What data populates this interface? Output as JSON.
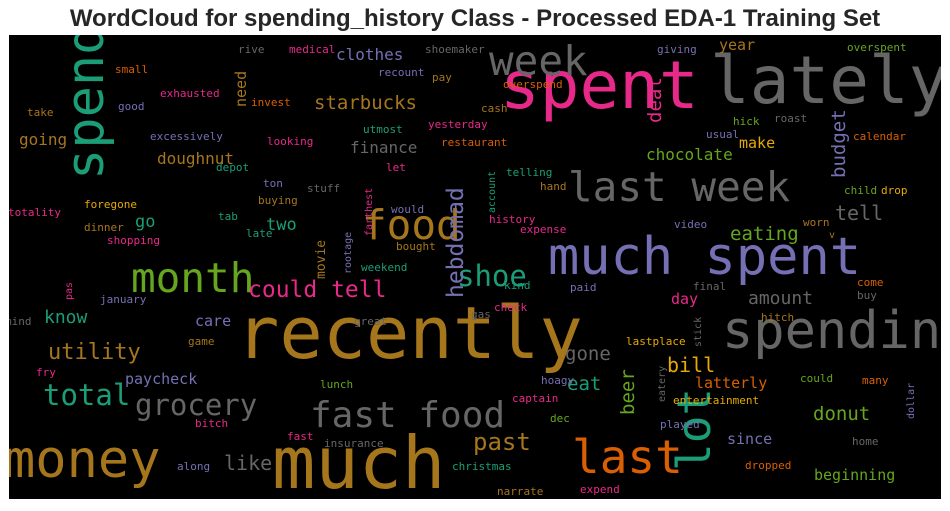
{
  "chart_data": {
    "type": "wordcloud",
    "title": "WordCloud for spending_history Class - Processed EDA-1 Training Set",
    "background": "#000000",
    "colors": {
      "pink": "#e7298a",
      "green": "#1b9e77",
      "gold": "#a6761d",
      "gray": "#666666",
      "purple": "#7570b3",
      "orange": "#d95f02",
      "lime": "#66a61e",
      "yellow": "#e6ab02"
    },
    "words": [
      {
        "text": "spent",
        "color": "pink",
        "weight": 0.92
      },
      {
        "text": "lately",
        "color": "gray",
        "weight": 0.82
      },
      {
        "text": "spend",
        "color": "green",
        "weight": 0.78
      },
      {
        "text": "week",
        "color": "gray",
        "weight": 0.52
      },
      {
        "text": "last week",
        "color": "gray",
        "weight": 0.52
      },
      {
        "text": "much spent",
        "color": "purple",
        "weight": 0.7
      },
      {
        "text": "recently",
        "color": "gold",
        "weight": 1.0
      },
      {
        "text": "spending",
        "color": "gray",
        "weight": 0.7
      },
      {
        "text": "much",
        "color": "gold",
        "weight": 1.0
      },
      {
        "text": "money",
        "color": "gold",
        "weight": 0.7
      },
      {
        "text": "last",
        "color": "orange",
        "weight": 0.58
      },
      {
        "text": "lot",
        "color": "green",
        "weight": 0.58
      },
      {
        "text": "food",
        "color": "gold",
        "weight": 0.52
      },
      {
        "text": "month",
        "color": "lime",
        "weight": 0.52
      },
      {
        "text": "fast food",
        "color": "gray",
        "weight": 0.48
      },
      {
        "text": "grocery",
        "color": "gray",
        "weight": 0.4
      },
      {
        "text": "shoe",
        "color": "green",
        "weight": 0.4
      },
      {
        "text": "total",
        "color": "green",
        "weight": 0.4
      },
      {
        "text": "could tell",
        "color": "pink",
        "weight": 0.34
      },
      {
        "text": "hebdomad",
        "color": "purple",
        "weight": 0.32
      },
      {
        "text": "past",
        "color": "gold",
        "weight": 0.33
      },
      {
        "text": "utility",
        "color": "gold",
        "weight": 0.31
      },
      {
        "text": "starbucks",
        "color": "gold",
        "weight": 0.28
      },
      {
        "text": "budget",
        "color": "purple",
        "weight": 0.28
      },
      {
        "text": "deal",
        "color": "pink",
        "weight": 0.28
      },
      {
        "text": "eating",
        "color": "lime",
        "weight": 0.28
      },
      {
        "text": "amount",
        "color": "gray",
        "weight": 0.27
      },
      {
        "text": "tell",
        "color": "gray",
        "weight": 0.27
      },
      {
        "text": "chocolate",
        "color": "lime",
        "weight": 0.24
      },
      {
        "text": "bill",
        "color": "yellow",
        "weight": 0.27
      },
      {
        "text": "gone",
        "color": "gray",
        "weight": 0.27
      },
      {
        "text": "eat",
        "color": "green",
        "weight": 0.27
      },
      {
        "text": "beer",
        "color": "lime",
        "weight": 0.27
      },
      {
        "text": "donut",
        "color": "lime",
        "weight": 0.27
      },
      {
        "text": "like",
        "color": "gray",
        "weight": 0.27
      },
      {
        "text": "know",
        "color": "green",
        "weight": 0.25
      },
      {
        "text": "go",
        "color": "green",
        "weight": 0.25
      },
      {
        "text": "two",
        "color": "green",
        "weight": 0.25
      },
      {
        "text": "going",
        "color": "gold",
        "weight": 0.22
      },
      {
        "text": "doughnut",
        "color": "gold",
        "weight": 0.22
      },
      {
        "text": "finance",
        "color": "gray",
        "weight": 0.22
      },
      {
        "text": "make",
        "color": "yellow",
        "weight": 0.22
      },
      {
        "text": "clothes",
        "color": "purple",
        "weight": 0.22
      },
      {
        "text": "need",
        "color": "gold",
        "weight": 0.2
      },
      {
        "text": "year",
        "color": "gold",
        "weight": 0.2
      },
      {
        "text": "day",
        "color": "pink",
        "weight": 0.21
      },
      {
        "text": "care",
        "color": "purple",
        "weight": 0.21
      },
      {
        "text": "paycheck",
        "color": "purple",
        "weight": 0.21
      },
      {
        "text": "latterly",
        "color": "orange",
        "weight": 0.21
      },
      {
        "text": "movie",
        "color": "gold",
        "weight": 0.16
      },
      {
        "text": "since",
        "color": "purple",
        "weight": 0.21
      },
      {
        "text": "beginning",
        "color": "lime",
        "weight": 0.21
      },
      {
        "text": "rive",
        "color": "gray",
        "weight": 0.11
      },
      {
        "text": "medical",
        "color": "pink",
        "weight": 0.11
      },
      {
        "text": "shoemaker",
        "color": "gray",
        "weight": 0.11
      },
      {
        "text": "giving",
        "color": "purple",
        "weight": 0.11
      },
      {
        "text": "overspent",
        "color": "lime",
        "weight": 0.11
      },
      {
        "text": "small",
        "color": "orange",
        "weight": 0.11
      },
      {
        "text": "recount",
        "color": "purple",
        "weight": 0.11
      },
      {
        "text": "pay",
        "color": "gold",
        "weight": 0.11
      },
      {
        "text": "overspend",
        "color": "orange",
        "weight": 0.11
      },
      {
        "text": "exhausted",
        "color": "pink",
        "weight": 0.11
      },
      {
        "text": "invest",
        "color": "orange",
        "weight": 0.11
      },
      {
        "text": "cash",
        "color": "gold",
        "weight": 0.11
      },
      {
        "text": "take",
        "color": "gold",
        "weight": 0.11
      },
      {
        "text": "good",
        "color": "purple",
        "weight": 0.11
      },
      {
        "text": "utmost",
        "color": "green",
        "weight": 0.11
      },
      {
        "text": "yesterday",
        "color": "pink",
        "weight": 0.11
      },
      {
        "text": "hick",
        "color": "lime",
        "weight": 0.11
      },
      {
        "text": "roast",
        "color": "gray",
        "weight": 0.11
      },
      {
        "text": "excessively",
        "color": "purple",
        "weight": 0.11
      },
      {
        "text": "looking",
        "color": "pink",
        "weight": 0.11
      },
      {
        "text": "restaurant",
        "color": "orange",
        "weight": 0.11
      },
      {
        "text": "usual",
        "color": "purple",
        "weight": 0.11
      },
      {
        "text": "calendar",
        "color": "orange",
        "weight": 0.11
      },
      {
        "text": "let",
        "color": "pink",
        "weight": 0.11
      },
      {
        "text": "telling",
        "color": "green",
        "weight": 0.11
      },
      {
        "text": "hand",
        "color": "gold",
        "weight": 0.11
      },
      {
        "text": "depot",
        "color": "green",
        "weight": 0.11
      },
      {
        "text": "ton",
        "color": "purple",
        "weight": 0.11
      },
      {
        "text": "stuff",
        "color": "gray",
        "weight": 0.11
      },
      {
        "text": "child",
        "color": "lime",
        "weight": 0.11
      },
      {
        "text": "drop",
        "color": "yellow",
        "weight": 0.11
      },
      {
        "text": "foregone",
        "color": "yellow",
        "weight": 0.11
      },
      {
        "text": "buying",
        "color": "gold",
        "weight": 0.11
      },
      {
        "text": "totality",
        "color": "pink",
        "weight": 0.11
      },
      {
        "text": "tab",
        "color": "green",
        "weight": 0.11
      },
      {
        "text": "would",
        "color": "purple",
        "weight": 0.11
      },
      {
        "text": "account",
        "color": "green",
        "weight": 0.1
      },
      {
        "text": "worn",
        "color": "gold",
        "weight": 0.11
      },
      {
        "text": "dinner",
        "color": "gold",
        "weight": 0.11
      },
      {
        "text": "late",
        "color": "green",
        "weight": 0.11
      },
      {
        "text": "farthest",
        "color": "pink",
        "weight": 0.1
      },
      {
        "text": "history",
        "color": "pink",
        "weight": 0.11
      },
      {
        "text": "video",
        "color": "purple",
        "weight": 0.11
      },
      {
        "text": "shopping",
        "color": "pink",
        "weight": 0.11
      },
      {
        "text": "bought",
        "color": "gold",
        "weight": 0.11
      },
      {
        "text": "expense",
        "color": "pink",
        "weight": 0.11
      },
      {
        "text": "v",
        "color": "gold",
        "weight": 0.1
      },
      {
        "text": "rootage",
        "color": "purple",
        "weight": 0.1
      },
      {
        "text": "weekend",
        "color": "green",
        "weight": 0.11
      },
      {
        "text": "kind",
        "color": "green",
        "weight": 0.11
      },
      {
        "text": "paid",
        "color": "purple",
        "weight": 0.11
      },
      {
        "text": "come",
        "color": "orange",
        "weight": 0.11
      },
      {
        "text": "pas",
        "color": "pink",
        "weight": 0.1
      },
      {
        "text": "january",
        "color": "purple",
        "weight": 0.11
      },
      {
        "text": "final",
        "color": "gray",
        "weight": 0.11
      },
      {
        "text": "buy",
        "color": "gray",
        "weight": 0.11
      },
      {
        "text": "check",
        "color": "pink",
        "weight": 0.11
      },
      {
        "text": "gas",
        "color": "gray",
        "weight": 0.11
      },
      {
        "text": "hitch",
        "color": "gold",
        "weight": 0.11
      },
      {
        "text": "great",
        "color": "gray",
        "weight": 0.11
      },
      {
        "text": "stick",
        "color": "gray",
        "weight": 0.1
      },
      {
        "text": "mind",
        "color": "gray",
        "weight": 0.11
      },
      {
        "text": "game",
        "color": "gold",
        "weight": 0.11
      },
      {
        "text": "lastplace",
        "color": "yellow",
        "weight": 0.11
      },
      {
        "text": "many",
        "color": "orange",
        "weight": 0.11
      },
      {
        "text": "could",
        "color": "lime",
        "weight": 0.11
      },
      {
        "text": "fry",
        "color": "pink",
        "weight": 0.11
      },
      {
        "text": "hoagy",
        "color": "purple",
        "weight": 0.11
      },
      {
        "text": "eatery",
        "color": "gray",
        "weight": 0.1
      },
      {
        "text": "lunch",
        "color": "lime",
        "weight": 0.11
      },
      {
        "text": "captain",
        "color": "pink",
        "weight": 0.11
      },
      {
        "text": "entertainment",
        "color": "yellow",
        "weight": 0.11
      },
      {
        "text": "dollar",
        "color": "purple",
        "weight": 0.1
      },
      {
        "text": "dec",
        "color": "lime",
        "weight": 0.11
      },
      {
        "text": "played",
        "color": "purple",
        "weight": 0.11
      },
      {
        "text": "bitch",
        "color": "pink",
        "weight": 0.11
      },
      {
        "text": "fast",
        "color": "pink",
        "weight": 0.11
      },
      {
        "text": "insurance",
        "color": "gray",
        "weight": 0.11
      },
      {
        "text": "home",
        "color": "gray",
        "weight": 0.11
      },
      {
        "text": "along",
        "color": "purple",
        "weight": 0.11
      },
      {
        "text": "christmas",
        "color": "green",
        "weight": 0.11
      },
      {
        "text": "dropped",
        "color": "orange",
        "weight": 0.11
      },
      {
        "text": "narrate",
        "color": "gold",
        "weight": 0.11
      },
      {
        "text": "expend",
        "color": "pink",
        "weight": 0.11
      }
    ]
  }
}
